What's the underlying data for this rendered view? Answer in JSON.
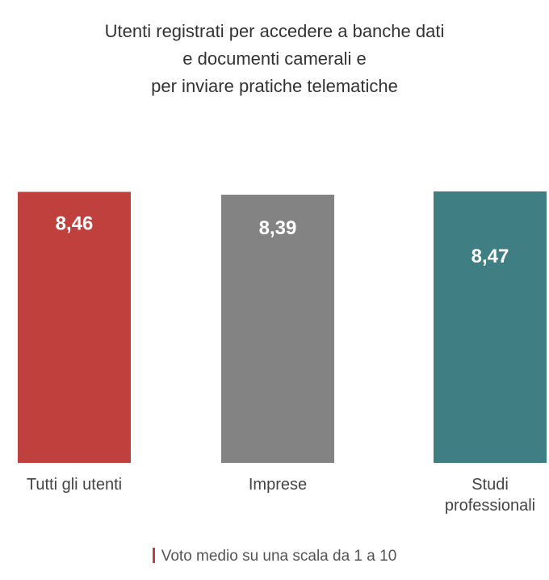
{
  "chart_data": {
    "type": "bar",
    "title_lines": [
      "Utenti registrati per accedere a banche dati",
      "e documenti camerali e",
      "per inviare pratiche telematiche"
    ],
    "categories": [
      [
        "Tutti gli utenti"
      ],
      [
        "Imprese"
      ],
      [
        "Studi",
        "professionali"
      ]
    ],
    "values": [
      8.46,
      8.39,
      8.47
    ],
    "value_labels": [
      "8,46",
      "8,39",
      "8,47"
    ],
    "colors": [
      "#bf403d",
      "#828382",
      "#3f7f83"
    ],
    "legend": "Voto medio su una scala da 1 a 10",
    "legend_color": "#bf403d",
    "ylim": [
      0,
      10
    ],
    "grid": false
  }
}
